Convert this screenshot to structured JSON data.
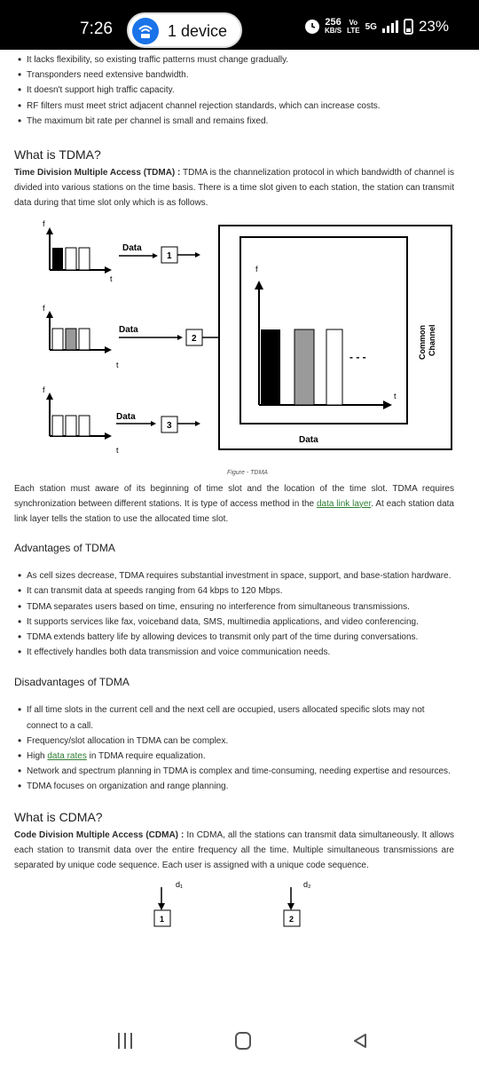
{
  "status_bar": {
    "time": "7:26",
    "hotspot": "1 device",
    "speed_value": "256",
    "speed_unit": "KB/S",
    "volte_top": "Vo",
    "volte_bottom": "LTE",
    "network": "5G",
    "battery": "23%"
  },
  "top_list": [
    "It lacks flexibility, so existing traffic patterns must change gradually.",
    "Transponders need extensive bandwidth.",
    "It doesn't support high traffic capacity.",
    "RF filters must meet strict adjacent channel rejection standards, which can increase costs.",
    "The maximum bit rate per channel is small and remains fixed."
  ],
  "tdma": {
    "heading": "What is TDMA?",
    "intro_term": "Time Division Multiple Access (TDMA) :",
    "intro_text": " TDMA is the channelization protocol in which bandwidth of channel is divided into various stations on the time basis. There is a time slot given to each station, the station can transmit data during that time slot only which is as follows.",
    "figure": {
      "axis_f": "f",
      "axis_t": "t",
      "data_label": "Data",
      "stations": [
        "1",
        "2",
        "3"
      ],
      "common_channel_line1": "Common",
      "common_channel_line2": "Channel",
      "dots": "- - -",
      "caption": "Figure - TDMA"
    },
    "para_before_link": "Each station must aware of its beginning of time slot and the location of the time slot. TDMA requires synchronization between different stations. It is type of access method in the ",
    "para_link": "data link layer",
    "para_after_link": ". At each station data link layer tells the station to use the allocated time slot.",
    "advantages_heading": "Advantages of TDMA",
    "advantages": [
      "As cell sizes decrease, TDMA requires substantial investment in space, support, and base-station hardware.",
      "It can transmit data at speeds ranging from 64 kbps to 120 Mbps.",
      "TDMA separates users based on time, ensuring no interference from simultaneous transmissions.",
      "It supports services like fax, voiceband data, SMS, multimedia applications, and video conferencing.",
      "TDMA extends battery life by allowing devices to transmit only part of the time during conversations.",
      "It effectively handles both data transmission and voice communication needs."
    ],
    "disadvantages_heading": "Disadvantages of TDMA",
    "disadvantages": [
      {
        "text": "If all time slots in the current cell and the next cell are occupied, users allocated specific slots may not connect to a call."
      },
      {
        "text": "Frequency/slot allocation in TDMA can be complex."
      },
      {
        "before": "High ",
        "link": "data rates",
        "after": " in TDMA require equalization."
      },
      {
        "text": "Network and spectrum planning in TDMA is complex and time-consuming, needing expertise and resources."
      },
      {
        "text": "TDMA focuses on organization and range planning."
      }
    ]
  },
  "cdma": {
    "heading": "What is CDMA?",
    "intro_term": "Code Division Multiple Access (CDMA) :",
    "intro_text": " In CDMA, all the stations can transmit data simultaneously. It allows each station to transmit data over the entire frequency all the time. Multiple simultaneous transmissions are separated by unique code sequence. Each user is assigned with a unique code sequence.",
    "figure": {
      "d1": "d₁",
      "d2": "d₂",
      "box1": "1",
      "box2": "2"
    }
  },
  "nav_bar": {
    "recents": "recents-icon",
    "home": "home-icon",
    "back": "back-icon"
  }
}
